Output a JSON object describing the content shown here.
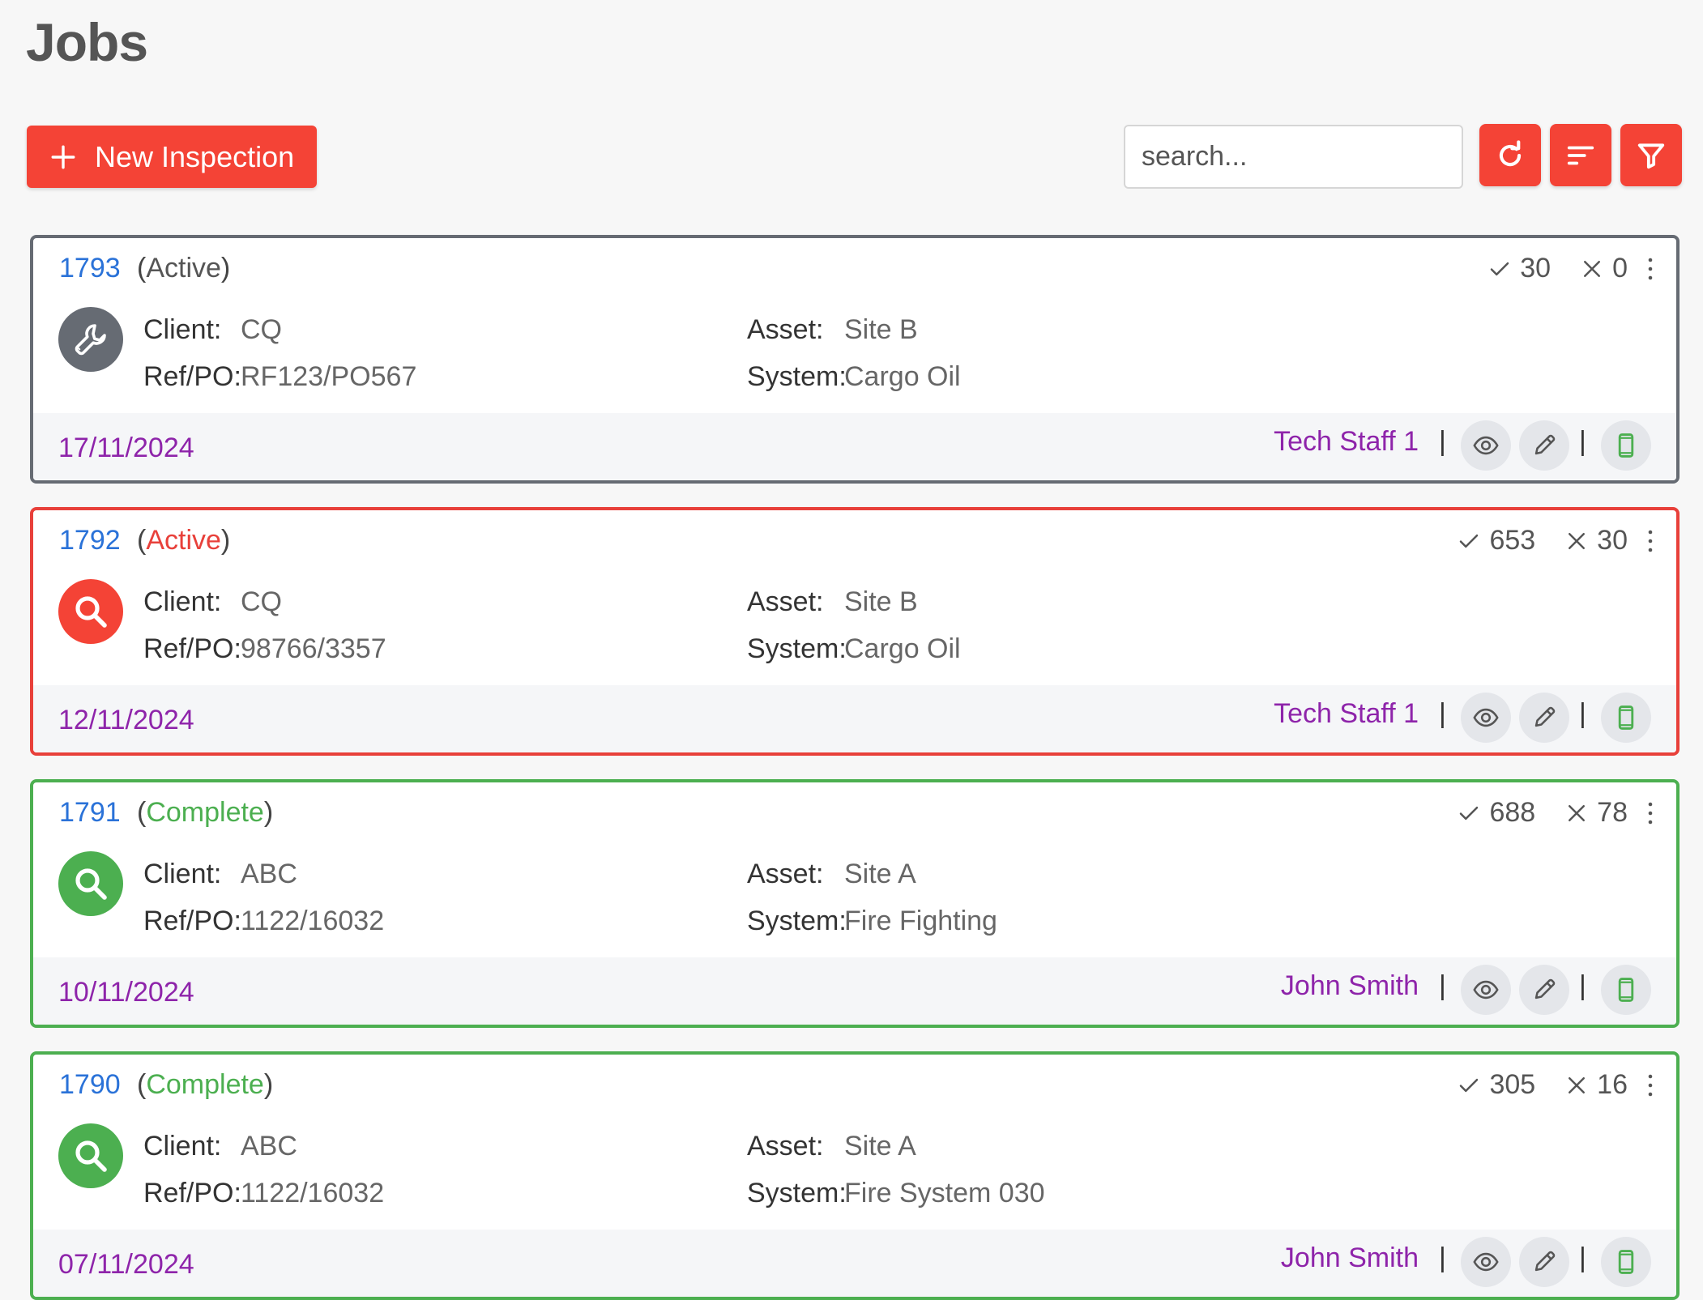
{
  "page": {
    "title": "Jobs"
  },
  "toolbar": {
    "new_button_label": "New Inspection",
    "search_placeholder": "search...",
    "refresh_icon": "refresh-icon",
    "sort_icon": "sort-icon",
    "filter_icon": "filter-icon"
  },
  "labels": {
    "client": "Client:",
    "refpo": "Ref/PO:",
    "asset": "Asset:",
    "system": "System:",
    "divider": "|"
  },
  "colors": {
    "accent": "#f44336",
    "default_border": "#666b73",
    "active": "#e8403a",
    "complete": "#4caf50",
    "link": "#2a72d8",
    "footer_text": "#8e24aa"
  },
  "jobs": [
    {
      "id": "1793",
      "status": "Active",
      "status_type": "default",
      "pass": "30",
      "fail": "0",
      "icon": "wrench-icon",
      "client": "CQ",
      "refpo": "RF123/PO567",
      "asset": "Site B",
      "system": "Cargo Oil",
      "date": "17/11/2024",
      "staff": "Tech Staff 1"
    },
    {
      "id": "1792",
      "status": "Active",
      "status_type": "active",
      "pass": "653",
      "fail": "30",
      "icon": "search-icon",
      "client": "CQ",
      "refpo": "98766/3357",
      "asset": "Site B",
      "system": "Cargo Oil",
      "date": "12/11/2024",
      "staff": "Tech Staff 1"
    },
    {
      "id": "1791",
      "status": "Complete",
      "status_type": "complete",
      "pass": "688",
      "fail": "78",
      "icon": "search-icon",
      "client": "ABC",
      "refpo": "1122/16032",
      "asset": "Site A",
      "system": "Fire Fighting",
      "date": "10/11/2024",
      "staff": "John Smith"
    },
    {
      "id": "1790",
      "status": "Complete",
      "status_type": "complete",
      "pass": "305",
      "fail": "16",
      "icon": "search-icon",
      "client": "ABC",
      "refpo": "1122/16032",
      "asset": "Site A",
      "system": "Fire System 030",
      "date": "07/11/2024",
      "staff": "John Smith"
    }
  ]
}
